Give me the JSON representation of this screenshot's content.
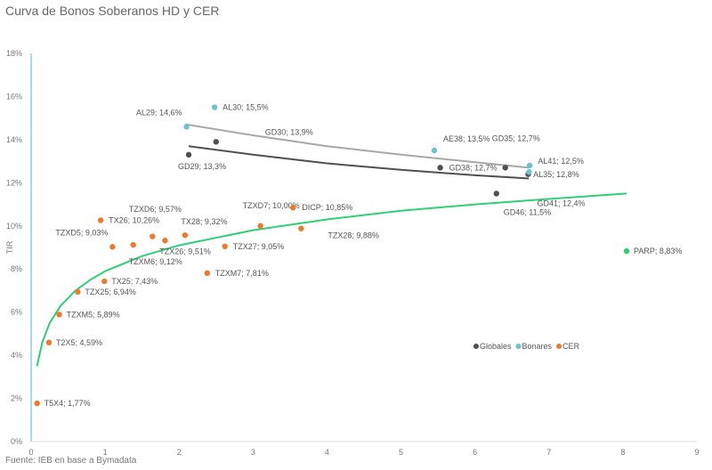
{
  "chart_data": {
    "type": "scatter",
    "title": "Curva de Bonos Soberanos HD y CER",
    "source": "Fuente: IEB en base a Bymadata",
    "xlabel": "",
    "ylabel": "TIR",
    "xlim": [
      0,
      9
    ],
    "ylim": [
      0,
      18
    ],
    "xticks": [
      "0",
      "1",
      "2",
      "3",
      "4",
      "5",
      "6",
      "7",
      "8",
      "9"
    ],
    "yticks": [
      "0%",
      "2%",
      "4%",
      "6%",
      "8%",
      "10%",
      "12%",
      "14%",
      "16%",
      "18%"
    ],
    "grid": false,
    "legend": "bottom-right",
    "series": [
      {
        "name": "Globales",
        "color": "#505050",
        "points": [
          {
            "label": "GD29; 13,3%",
            "x": 2.13,
            "y": 13.3
          },
          {
            "label": "GD30; 13,9%",
            "x": 2.5,
            "y": 13.9
          },
          {
            "label": "GD38; 12,7%",
            "x": 5.53,
            "y": 12.7
          },
          {
            "label": "GD35; 12,7%",
            "x": 6.41,
            "y": 12.7
          },
          {
            "label": "GD41; 12,4%",
            "x": 6.72,
            "y": 12.4
          },
          {
            "label": "GD46; 11,5%",
            "x": 6.29,
            "y": 11.5
          }
        ]
      },
      {
        "name": "Bonares",
        "color": "#6fc2cc",
        "points": [
          {
            "label": "AL29; 14,6%",
            "x": 2.1,
            "y": 14.6
          },
          {
            "label": "AL30; 15,5%",
            "x": 2.48,
            "y": 15.5
          },
          {
            "label": "AE38; 13,5%",
            "x": 5.45,
            "y": 13.5
          },
          {
            "label": "AL35; 12,8%",
            "x": 6.74,
            "y": 12.8
          },
          {
            "label": "AL41; 12,5%",
            "x": 6.73,
            "y": 12.5
          }
        ]
      },
      {
        "name": "CER",
        "color": "#ea7a2f",
        "points": [
          {
            "label": "T5X4; 1,77%",
            "x": 0.08,
            "y": 1.77
          },
          {
            "label": "T2X5; 4,59%",
            "x": 0.24,
            "y": 4.59
          },
          {
            "label": "TZXM5; 5,89%",
            "x": 0.38,
            "y": 5.89
          },
          {
            "label": "TZX25; 6,94%",
            "x": 0.63,
            "y": 6.94
          },
          {
            "label": "TX25; 7,43%",
            "x": 0.99,
            "y": 7.43
          },
          {
            "label": "TZXM7; 7,81%",
            "x": 2.38,
            "y": 7.81
          },
          {
            "label": "TZXD5; 9,03%",
            "x": 1.1,
            "y": 9.03
          },
          {
            "label": "TZXM6; 9,12%",
            "x": 1.38,
            "y": 9.12
          },
          {
            "label": "TX26; 10,26%",
            "x": 0.94,
            "y": 10.26
          },
          {
            "label": "TZX26; 9,51%",
            "x": 1.64,
            "y": 9.51
          },
          {
            "label": "TX28; 9,32%",
            "x": 1.81,
            "y": 9.32
          },
          {
            "label": "TZXD6; 9,57%",
            "x": 2.08,
            "y": 9.57
          },
          {
            "label": "TZX27; 9,05%",
            "x": 2.62,
            "y": 9.05
          },
          {
            "label": "TZXD7; 10,00%",
            "x": 3.1,
            "y": 10.0
          },
          {
            "label": "DICP; 10,85%",
            "x": 3.54,
            "y": 10.85
          },
          {
            "label": "TZX28; 9,88%",
            "x": 3.65,
            "y": 9.88
          }
        ]
      },
      {
        "name": "",
        "color": "#2fcf78",
        "points": [
          {
            "label": "PARP; 8,83%",
            "x": 8.05,
            "y": 8.83
          }
        ]
      }
    ],
    "trendlines": [
      {
        "color": "#2fcf78",
        "x": [
          0.08,
          0.15,
          0.25,
          0.4,
          0.6,
          0.8,
          1,
          1.5,
          2,
          3,
          4,
          5,
          6,
          7,
          8.05
        ],
        "y": [
          3.5,
          4.6,
          5.5,
          6.3,
          7.0,
          7.5,
          7.9,
          8.6,
          9.1,
          9.8,
          10.3,
          10.7,
          11.0,
          11.25,
          11.5
        ]
      },
      {
        "color": "#a8a8a8",
        "x": [
          2.1,
          3,
          4,
          5,
          6,
          6.73
        ],
        "y": [
          14.7,
          14.2,
          13.7,
          13.3,
          12.95,
          12.7
        ]
      },
      {
        "color": "#505050",
        "x": [
          2.13,
          3,
          4,
          5,
          6,
          6.73
        ],
        "y": [
          13.7,
          13.3,
          12.9,
          12.6,
          12.35,
          12.2
        ]
      }
    ]
  }
}
